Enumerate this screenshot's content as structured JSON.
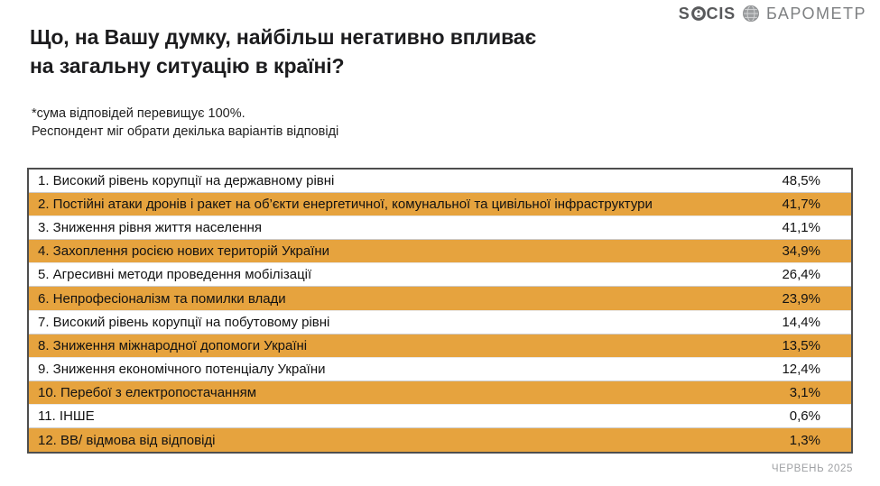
{
  "header": {
    "logo": {
      "brand_prefix": "S",
      "brand_suffix": "CIS",
      "brand_full": "SOCIS",
      "product": "БАРОМЕТР"
    }
  },
  "title": {
    "line1": "Що, на Вашу думку, найбільш негативно впливає",
    "line2": "на загальну ситуацію в країні?"
  },
  "note": {
    "line1": "*сума відповідей перевищує 100%.",
    "line2": "Респондент міг обрати декілька варіантів відповіді"
  },
  "footer": {
    "date": "ЧЕРВЕНЬ 2025"
  },
  "colors": {
    "accent_orange": "#E6A33E",
    "table_border": "#4E4E4E",
    "logo_gray": "#58595B",
    "muted_gray": "#9FA1A4"
  },
  "chart_data": {
    "type": "table",
    "title": "Що, на Вашу думку, найбільш негативно впливає на загальну ситуацію в країні?",
    "note": "*сума відповідей перевищує 100%. Респондент міг обрати декілька варіантів відповіді",
    "unit": "%",
    "decimal_separator": ",",
    "rows": [
      {
        "rank": 1,
        "label": "1. Високий рівень корупції на державному рівні",
        "value": 48.5,
        "display": "48,5%",
        "highlighted": false
      },
      {
        "rank": 2,
        "label": "2. Постійні атаки дронів і ракет на об’єкти енергетичної, комунальної та цивільної інфраструктури",
        "value": 41.7,
        "display": "41,7%",
        "highlighted": true
      },
      {
        "rank": 3,
        "label": "3. Зниження рівня життя населення",
        "value": 41.1,
        "display": "41,1%",
        "highlighted": false
      },
      {
        "rank": 4,
        "label": "4. Захоплення росією нових територій України",
        "value": 34.9,
        "display": "34,9%",
        "highlighted": true
      },
      {
        "rank": 5,
        "label": "5. Агресивні методи проведення мобілізації",
        "value": 26.4,
        "display": "26,4%",
        "highlighted": false
      },
      {
        "rank": 6,
        "label": "6. Непрофесіоналізм та помилки влади",
        "value": 23.9,
        "display": "23,9%",
        "highlighted": true
      },
      {
        "rank": 7,
        "label": "7. Високий рівень корупції на побутовому рівні",
        "value": 14.4,
        "display": "14,4%",
        "highlighted": false
      },
      {
        "rank": 8,
        "label": "8. Зниження міжнародної допомоги Україні",
        "value": 13.5,
        "display": "13,5%",
        "highlighted": true
      },
      {
        "rank": 9,
        "label": "9. Зниження економічного потенціалу України",
        "value": 12.4,
        "display": "12,4%",
        "highlighted": false
      },
      {
        "rank": 10,
        "label": "10. Перебої з електропостачанням",
        "value": 3.1,
        "display": "3,1%",
        "highlighted": true
      },
      {
        "rank": 11,
        "label": "11. ІНШЕ",
        "value": 0.6,
        "display": "0,6%",
        "highlighted": false
      },
      {
        "rank": 12,
        "label": "12. ВВ/ відмова від відповіді",
        "value": 1.3,
        "display": "1,3%",
        "highlighted": true
      }
    ]
  }
}
